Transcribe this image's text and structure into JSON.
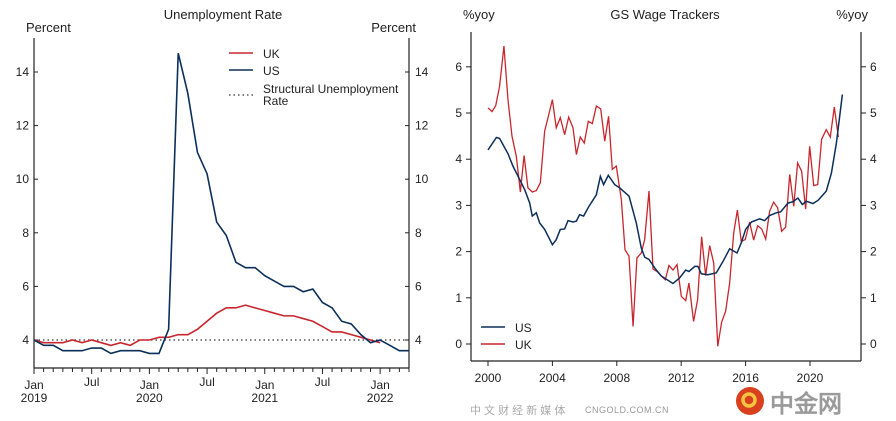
{
  "colors": {
    "uk": "#c8262e",
    "us": "#0b2f5b",
    "structural": "#333333"
  },
  "chart_data": [
    {
      "type": "line",
      "title": "Unemployment Rate",
      "ylabel_left": "Percent",
      "ylabel_right": "Percent",
      "x_start": "2019-01",
      "x_frequency": "monthly",
      "x_ticks": [
        {
          "month": 0,
          "label": "Jan",
          "sub": "2019"
        },
        {
          "month": 6,
          "label": "Jul",
          "sub": ""
        },
        {
          "month": 12,
          "label": "Jan",
          "sub": "2020"
        },
        {
          "month": 18,
          "label": "Jul",
          "sub": ""
        },
        {
          "month": 24,
          "label": "Jan",
          "sub": "2021"
        },
        {
          "month": 30,
          "label": "Jul",
          "sub": ""
        },
        {
          "month": 36,
          "label": "Jan",
          "sub": "2022"
        }
      ],
      "y_ticks": [
        4,
        6,
        8,
        10,
        12,
        14
      ],
      "ylim": [
        2.95,
        15.2
      ],
      "legend_position": "top-right",
      "series": [
        {
          "name": "UK",
          "color": "#c8262e",
          "values": [
            4.0,
            3.9,
            3.9,
            3.9,
            4.0,
            3.9,
            4.0,
            3.9,
            3.8,
            3.9,
            3.8,
            4.0,
            4.0,
            4.1,
            4.1,
            4.2,
            4.2,
            4.4,
            4.7,
            5.0,
            5.2,
            5.2,
            5.3,
            5.2,
            5.1,
            5.0,
            4.9,
            4.9,
            4.8,
            4.7,
            4.5,
            4.3,
            4.3,
            4.2,
            4.1,
            4.0,
            3.9
          ]
        },
        {
          "name": "US",
          "color": "#0b2f5b",
          "values": [
            4.0,
            3.8,
            3.8,
            3.6,
            3.6,
            3.6,
            3.7,
            3.7,
            3.5,
            3.6,
            3.6,
            3.6,
            3.5,
            3.5,
            4.4,
            14.7,
            13.2,
            11.0,
            10.2,
            8.4,
            7.9,
            6.9,
            6.7,
            6.7,
            6.4,
            6.2,
            6.0,
            6.0,
            5.8,
            5.9,
            5.4,
            5.2,
            4.7,
            4.6,
            4.2,
            3.9,
            4.0,
            3.8,
            3.6,
            3.6
          ]
        }
      ],
      "reference_line": {
        "name_line1": "Structural Unemployment",
        "name_line2": "Rate",
        "value": 4.0,
        "style": "dotted"
      }
    },
    {
      "type": "line",
      "title": "GS Wage Trackers",
      "ylabel_left": "%yoy",
      "ylabel_right": "%yoy",
      "x_ticks": [
        2000,
        2004,
        2008,
        2012,
        2016,
        2020
      ],
      "xlim": [
        1998.9,
        2023.1
      ],
      "y_ticks": [
        0,
        1,
        2,
        3,
        4,
        5,
        6
      ],
      "ylim": [
        -0.37,
        6.9
      ],
      "legend_position": "bottom-left",
      "series": [
        {
          "name": "US",
          "color": "#0b2f5b",
          "points": [
            [
              2000.0,
              4.2
            ],
            [
              2000.52,
              4.47
            ],
            [
              2000.72,
              4.45
            ],
            [
              2001.24,
              4.12
            ],
            [
              2001.55,
              3.85
            ],
            [
              2001.97,
              3.56
            ],
            [
              2002.28,
              3.34
            ],
            [
              2002.59,
              3.05
            ],
            [
              2002.75,
              2.77
            ],
            [
              2003.0,
              2.84
            ],
            [
              2003.21,
              2.62
            ],
            [
              2003.52,
              2.48
            ],
            [
              2004.0,
              2.15
            ],
            [
              2004.24,
              2.26
            ],
            [
              2004.49,
              2.48
            ],
            [
              2004.76,
              2.49
            ],
            [
              2004.97,
              2.67
            ],
            [
              2005.28,
              2.64
            ],
            [
              2005.49,
              2.66
            ],
            [
              2005.69,
              2.8
            ],
            [
              2005.94,
              2.77
            ],
            [
              2006.27,
              2.98
            ],
            [
              2006.73,
              3.23
            ],
            [
              2006.98,
              3.63
            ],
            [
              2007.18,
              3.45
            ],
            [
              2007.47,
              3.65
            ],
            [
              2007.87,
              3.45
            ],
            [
              2008.18,
              3.38
            ],
            [
              2008.76,
              3.2
            ],
            [
              2009.21,
              2.62
            ],
            [
              2009.52,
              2.08
            ],
            [
              2009.73,
              1.88
            ],
            [
              2010.0,
              1.83
            ],
            [
              2010.41,
              1.62
            ],
            [
              2010.77,
              1.47
            ],
            [
              2011.49,
              1.31
            ],
            [
              2011.9,
              1.43
            ],
            [
              2012.28,
              1.6
            ],
            [
              2012.48,
              1.57
            ],
            [
              2012.84,
              1.68
            ],
            [
              2013.04,
              1.68
            ],
            [
              2013.25,
              1.52
            ],
            [
              2013.66,
              1.5
            ],
            [
              2014.18,
              1.54
            ],
            [
              2014.6,
              1.79
            ],
            [
              2015.01,
              2.06
            ],
            [
              2015.47,
              1.97
            ],
            [
              2015.73,
              2.19
            ],
            [
              2016.0,
              2.48
            ],
            [
              2016.36,
              2.64
            ],
            [
              2016.87,
              2.71
            ],
            [
              2017.18,
              2.67
            ],
            [
              2017.49,
              2.78
            ],
            [
              2017.91,
              2.84
            ],
            [
              2018.18,
              2.86
            ],
            [
              2018.63,
              3.05
            ],
            [
              2018.94,
              3.08
            ],
            [
              2019.25,
              3.16
            ],
            [
              2019.52,
              3.02
            ],
            [
              2019.77,
              3.09
            ],
            [
              2020.19,
              3.04
            ],
            [
              2020.5,
              3.11
            ],
            [
              2021.01,
              3.31
            ],
            [
              2021.33,
              3.7
            ],
            [
              2021.64,
              4.35
            ],
            [
              2022.01,
              5.4
            ]
          ]
        },
        {
          "name": "UK",
          "color": "#c8262e",
          "points": [
            [
              2000.0,
              5.11
            ],
            [
              2000.25,
              5.03
            ],
            [
              2000.48,
              5.16
            ],
            [
              2000.72,
              5.58
            ],
            [
              2000.99,
              6.45
            ],
            [
              2001.24,
              5.29
            ],
            [
              2001.49,
              4.5
            ],
            [
              2001.76,
              4.06
            ],
            [
              2002.01,
              3.29
            ],
            [
              2002.24,
              4.08
            ],
            [
              2002.48,
              3.38
            ],
            [
              2002.75,
              3.29
            ],
            [
              2003.0,
              3.32
            ],
            [
              2003.25,
              3.49
            ],
            [
              2003.52,
              4.61
            ],
            [
              2003.75,
              4.93
            ],
            [
              2004.0,
              5.29
            ],
            [
              2004.24,
              4.68
            ],
            [
              2004.49,
              4.9
            ],
            [
              2004.76,
              4.53
            ],
            [
              2005.01,
              4.91
            ],
            [
              2005.28,
              4.68
            ],
            [
              2005.49,
              4.1
            ],
            [
              2005.73,
              4.48
            ],
            [
              2005.98,
              4.35
            ],
            [
              2006.23,
              4.82
            ],
            [
              2006.48,
              4.77
            ],
            [
              2006.73,
              5.15
            ],
            [
              2007.0,
              5.09
            ],
            [
              2007.25,
              4.39
            ],
            [
              2007.49,
              4.93
            ],
            [
              2007.72,
              3.78
            ],
            [
              2007.97,
              3.85
            ],
            [
              2008.28,
              3.13
            ],
            [
              2008.51,
              2.04
            ],
            [
              2008.76,
              1.9
            ],
            [
              2009.01,
              0.38
            ],
            [
              2009.25,
              1.86
            ],
            [
              2009.52,
              1.97
            ],
            [
              2009.73,
              2.26
            ],
            [
              2010.0,
              3.31
            ],
            [
              2010.25,
              1.62
            ],
            [
              2010.5,
              1.57
            ],
            [
              2010.77,
              1.47
            ],
            [
              2011.01,
              1.39
            ],
            [
              2011.24,
              1.7
            ],
            [
              2011.49,
              1.6
            ],
            [
              2011.74,
              1.72
            ],
            [
              2012.01,
              1.03
            ],
            [
              2012.28,
              0.94
            ],
            [
              2012.48,
              1.32
            ],
            [
              2012.77,
              0.49
            ],
            [
              2013.02,
              0.96
            ],
            [
              2013.27,
              2.32
            ],
            [
              2013.52,
              1.48
            ],
            [
              2013.77,
              2.13
            ],
            [
              2014.02,
              1.75
            ],
            [
              2014.27,
              -0.05
            ],
            [
              2014.51,
              0.47
            ],
            [
              2014.76,
              0.71
            ],
            [
              2015.01,
              1.32
            ],
            [
              2015.26,
              2.4
            ],
            [
              2015.49,
              2.9
            ],
            [
              2015.73,
              2.22
            ],
            [
              2015.98,
              2.26
            ],
            [
              2016.25,
              2.64
            ],
            [
              2016.5,
              2.25
            ],
            [
              2016.75,
              2.56
            ],
            [
              2017.0,
              2.49
            ],
            [
              2017.25,
              2.27
            ],
            [
              2017.49,
              2.87
            ],
            [
              2017.74,
              3.07
            ],
            [
              2017.99,
              2.95
            ],
            [
              2018.24,
              2.44
            ],
            [
              2018.49,
              2.53
            ],
            [
              2018.74,
              3.67
            ],
            [
              2018.99,
              2.98
            ],
            [
              2019.23,
              3.92
            ],
            [
              2019.48,
              3.74
            ],
            [
              2019.73,
              2.92
            ],
            [
              2019.98,
              4.28
            ],
            [
              2020.23,
              3.43
            ],
            [
              2020.48,
              3.45
            ],
            [
              2020.72,
              4.43
            ],
            [
              2021.01,
              4.64
            ],
            [
              2021.26,
              4.48
            ],
            [
              2021.51,
              5.13
            ],
            [
              2021.76,
              4.48
            ]
          ]
        }
      ]
    }
  ],
  "watermark": {
    "brand": "中金网",
    "domain": "CNGOLD.COM.CN",
    "tagline": "中 文 财 经 新 媒 体"
  }
}
